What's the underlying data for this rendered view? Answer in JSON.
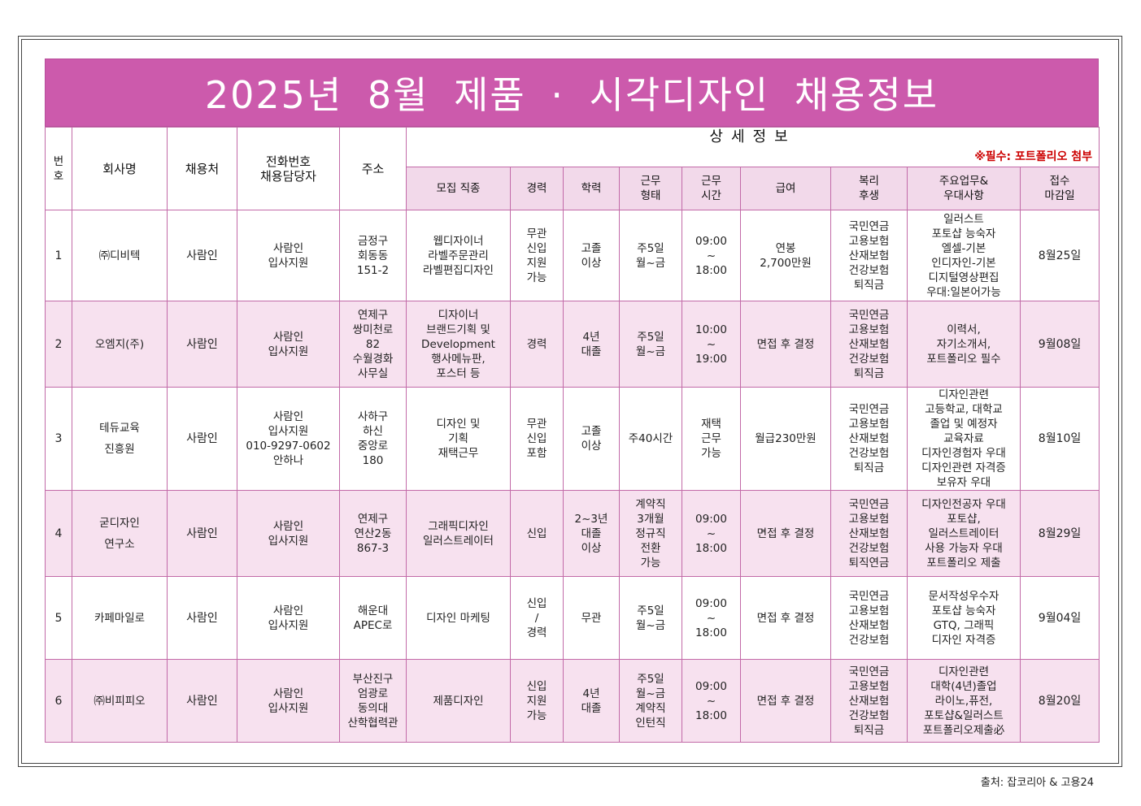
{
  "title": "2025년 8월 제품 · 시각디자인 채용정보",
  "header": {
    "no": "번호",
    "company": "회사명",
    "channel": "채용처",
    "contact": [
      "전화번호",
      "채용담당자"
    ],
    "address": "주소",
    "detail": "상세정보",
    "note": "※필수: 포트폴리오 첨부",
    "sub": [
      [
        "모집 직종"
      ],
      [
        "경력"
      ],
      [
        "학력"
      ],
      [
        "근무",
        "형태"
      ],
      [
        "근무",
        "시간"
      ],
      [
        "급여"
      ],
      [
        "복리",
        "후생"
      ],
      [
        "주요업무&",
        "우대사항"
      ],
      [
        "접수",
        "마감일"
      ]
    ]
  },
  "rows": [
    {
      "no": "1",
      "company": [
        "㈜디비텍"
      ],
      "channel": "사람인",
      "contact": [
        "사람인",
        "입사지원"
      ],
      "address": [
        "금정구",
        "회동동",
        "151-2"
      ],
      "job": [
        "웹디자이너",
        "라벨주문관리",
        "라벨편집디자인"
      ],
      "career": [
        "무관",
        "신입",
        "지원",
        "가능"
      ],
      "edu": [
        "고졸",
        "이상"
      ],
      "type": [
        "주5일",
        "월~금"
      ],
      "hours": [
        "09:00",
        "~",
        "18:00"
      ],
      "pay": [
        "연봉",
        "2,700만원"
      ],
      "welfare": [
        "국민연금",
        "고용보험",
        "산재보험",
        "건강보험",
        "퇴직금"
      ],
      "duty": [
        "일러스트",
        "포토샵 능숙자",
        "엘셀-기본",
        "인디자인-기본",
        "디지털영상편집",
        "우대:일본어가능"
      ],
      "deadline": "8월25일"
    },
    {
      "no": "2",
      "company": [
        "오엠지(주)"
      ],
      "channel": "사람인",
      "contact": [
        "사람인",
        "입사지원"
      ],
      "address": [
        "연제구",
        "쌍미천로",
        "82",
        "수월경화",
        "사무실"
      ],
      "job": [
        "디자이너",
        "브랜드기획 및",
        "Development",
        "행사메뉴판,",
        "포스터 등"
      ],
      "career": [
        "경력"
      ],
      "edu": [
        "4년",
        "대졸"
      ],
      "type": [
        "주5일",
        "월~금"
      ],
      "hours": [
        "10:00",
        "~",
        "19:00"
      ],
      "pay": [
        "면접 후 결정"
      ],
      "welfare": [
        "국민연금",
        "고용보험",
        "산재보험",
        "건강보험",
        "퇴직금"
      ],
      "duty": [
        "이력서,",
        "자기소개서,",
        "포트폴리오 필수"
      ],
      "deadline": "9월08일"
    },
    {
      "no": "3",
      "company": [
        "테듀교육",
        "진흥원"
      ],
      "channel": "사람인",
      "contact": [
        "사람인",
        "입사지원",
        "010-9297-0602",
        "안하나"
      ],
      "address": [
        "사하구",
        "하신",
        "중앙로",
        "180"
      ],
      "job": [
        "디자인 및",
        "기획",
        "재택근무"
      ],
      "career": [
        "무관",
        "신입",
        "포함"
      ],
      "edu": [
        "고졸",
        "이상"
      ],
      "type": [
        "주40시간"
      ],
      "hours": [
        "재택",
        "근무",
        "가능"
      ],
      "pay": [
        "월급230만원"
      ],
      "welfare": [
        "국민연금",
        "고용보험",
        "산재보험",
        "건강보험",
        "퇴직금"
      ],
      "duty": [
        "디자인관련",
        "고등학교, 대학교",
        "졸업 및 예정자",
        "교육자료",
        "디자인경험자 우대",
        "디자인관련 자격증",
        "보유자 우대"
      ],
      "deadline": "8월10일"
    },
    {
      "no": "4",
      "company": [
        "굳디자인",
        "연구소"
      ],
      "channel": "사람인",
      "contact": [
        "사람인",
        "입사지원"
      ],
      "address": [
        "연제구",
        "연산2동",
        "867-3"
      ],
      "job": [
        "그래픽디자인",
        "일러스트레이터"
      ],
      "career": [
        "신입"
      ],
      "edu": [
        "2~3년",
        "대졸",
        "이상"
      ],
      "type": [
        "계약직",
        "3개월",
        "정규직",
        "전환",
        "가능"
      ],
      "hours": [
        "09:00",
        "~",
        "18:00"
      ],
      "pay": [
        "면접 후 결정"
      ],
      "welfare": [
        "국민연금",
        "고용보험",
        "산재보험",
        "건강보험",
        "퇴직연금"
      ],
      "duty": [
        "디자인전공자 우대",
        "포토샵,",
        "일러스트레이터",
        "사용 가능자 우대",
        "포트폴리오 제출"
      ],
      "deadline": "8월29일"
    },
    {
      "no": "5",
      "company": [
        "카페마일로"
      ],
      "channel": "사람인",
      "contact": [
        "사람인",
        "입사지원"
      ],
      "address": [
        "해운대",
        "APEC로"
      ],
      "job": [
        "디자인 마케팅"
      ],
      "career": [
        "신입",
        "/",
        "경력"
      ],
      "edu": [
        "무관"
      ],
      "type": [
        "주5일",
        "월~금"
      ],
      "hours": [
        "09:00",
        "~",
        "18:00"
      ],
      "pay": [
        "면접 후 결정"
      ],
      "welfare": [
        "국민연금",
        "고용보험",
        "산재보험",
        "건강보험"
      ],
      "duty": [
        "문서작성우수자",
        "포토샵 능숙자",
        "GTQ, 그래픽",
        "디자인 자격증"
      ],
      "deadline": "9월04일"
    },
    {
      "no": "6",
      "company": [
        "㈜비피피오"
      ],
      "channel": "사람인",
      "contact": [
        "사람인",
        "입사지원"
      ],
      "address": [
        "부산진구",
        "엄광로",
        "동의대",
        "산학협력관"
      ],
      "job": [
        "제품디자인"
      ],
      "career": [
        "신입",
        "지원",
        "가능"
      ],
      "edu": [
        "4년",
        "대졸"
      ],
      "type": [
        "주5일",
        "월~금",
        "계약직",
        "인턴직"
      ],
      "hours": [
        "09:00",
        "~",
        "18:00"
      ],
      "pay": [
        "면접 후 결정"
      ],
      "welfare": [
        "국민연금",
        "고용보험",
        "산재보험",
        "건강보험",
        "퇴직금"
      ],
      "duty": [
        "디자인관련",
        "대학(4년)졸업",
        "라이노,퓨전,",
        "포토샵&일러스트",
        "포트폴리오제출必"
      ],
      "deadline": "8월20일"
    }
  ],
  "source": "출처: 잡코리아 & 고용24",
  "colors": {
    "title_bg": "#cc5aac",
    "stripe_pink": "#f7e1ef",
    "note_red": "#cc0000"
  }
}
